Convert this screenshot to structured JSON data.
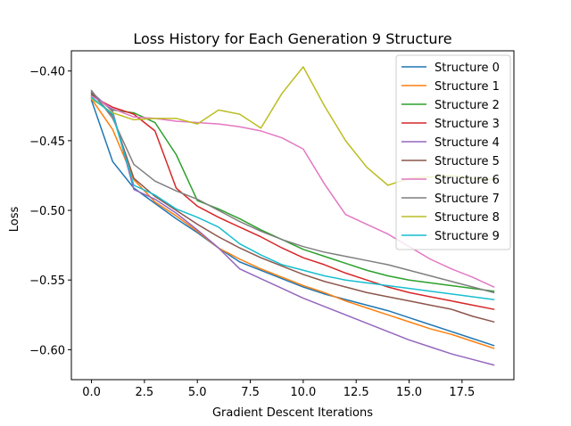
{
  "chart_data": {
    "type": "line",
    "title": "Loss History for Each Generation 9 Structure",
    "xlabel": "Gradient Descent Iterations",
    "ylabel": "Loss",
    "xlim": [
      -0.95,
      19.95
    ],
    "ylim": [
      -0.6215,
      -0.3855
    ],
    "xticks": [
      0.0,
      2.5,
      5.0,
      7.5,
      10.0,
      12.5,
      15.0,
      17.5
    ],
    "xtick_labels": [
      "0.0",
      "2.5",
      "5.0",
      "7.5",
      "10.0",
      "12.5",
      "15.0",
      "17.5"
    ],
    "yticks": [
      -0.4,
      -0.45,
      -0.5,
      -0.55,
      -0.6
    ],
    "ytick_labels": [
      "−0.40",
      "−0.45",
      "−0.50",
      "−0.55",
      "−0.60"
    ],
    "grid": false,
    "legend_position": "top-right",
    "x": [
      0,
      1,
      2,
      3,
      4,
      5,
      6,
      7,
      8,
      9,
      10,
      11,
      12,
      13,
      14,
      15,
      16,
      17,
      18,
      19
    ],
    "series": [
      {
        "name": "Structure 0",
        "color": "#1f77b4",
        "values": [
          -0.421,
          -0.465,
          -0.484,
          -0.495,
          -0.506,
          -0.516,
          -0.527,
          -0.537,
          -0.543,
          -0.549,
          -0.555,
          -0.56,
          -0.564,
          -0.568,
          -0.572,
          -0.577,
          -0.582,
          -0.587,
          -0.592,
          -0.597
        ]
      },
      {
        "name": "Structure 1",
        "color": "#ff7f0e",
        "values": [
          -0.42,
          -0.442,
          -0.478,
          -0.494,
          -0.504,
          -0.515,
          -0.527,
          -0.535,
          -0.542,
          -0.548,
          -0.554,
          -0.559,
          -0.565,
          -0.57,
          -0.575,
          -0.58,
          -0.585,
          -0.589,
          -0.594,
          -0.599
        ]
      },
      {
        "name": "Structure 2",
        "color": "#2ca02c",
        "values": [
          -0.417,
          -0.428,
          -0.43,
          -0.437,
          -0.46,
          -0.493,
          -0.499,
          -0.506,
          -0.514,
          -0.521,
          -0.528,
          -0.533,
          -0.538,
          -0.543,
          -0.547,
          -0.55,
          -0.552,
          -0.554,
          -0.556,
          -0.558
        ]
      },
      {
        "name": "Structure 3",
        "color": "#d62728",
        "values": [
          -0.418,
          -0.426,
          -0.431,
          -0.443,
          -0.484,
          -0.497,
          -0.505,
          -0.512,
          -0.519,
          -0.527,
          -0.534,
          -0.539,
          -0.545,
          -0.55,
          -0.555,
          -0.559,
          -0.562,
          -0.565,
          -0.568,
          -0.571
        ]
      },
      {
        "name": "Structure 4",
        "color": "#9467bd",
        "values": [
          -0.415,
          -0.429,
          -0.485,
          -0.492,
          -0.502,
          -0.514,
          -0.527,
          -0.542,
          -0.549,
          -0.556,
          -0.563,
          -0.569,
          -0.575,
          -0.581,
          -0.587,
          -0.593,
          -0.598,
          -0.603,
          -0.607,
          -0.611
        ]
      },
      {
        "name": "Structure 5",
        "color": "#8c564b",
        "values": [
          -0.416,
          -0.432,
          -0.477,
          -0.49,
          -0.5,
          -0.51,
          -0.519,
          -0.527,
          -0.534,
          -0.54,
          -0.546,
          -0.551,
          -0.555,
          -0.559,
          -0.562,
          -0.565,
          -0.568,
          -0.571,
          -0.576,
          -0.58
        ]
      },
      {
        "name": "Structure 6",
        "color": "#e377c2",
        "values": [
          -0.418,
          -0.427,
          -0.433,
          -0.434,
          -0.436,
          -0.437,
          -0.438,
          -0.44,
          -0.443,
          -0.448,
          -0.456,
          -0.481,
          -0.503,
          -0.51,
          -0.517,
          -0.526,
          -0.535,
          -0.542,
          -0.548,
          -0.555
        ]
      },
      {
        "name": "Structure 7",
        "color": "#7f7f7f",
        "values": [
          -0.414,
          -0.434,
          -0.467,
          -0.479,
          -0.486,
          -0.492,
          -0.5,
          -0.508,
          -0.515,
          -0.521,
          -0.526,
          -0.53,
          -0.533,
          -0.536,
          -0.539,
          -0.543,
          -0.547,
          -0.551,
          -0.555,
          -0.559
        ]
      },
      {
        "name": "Structure 8",
        "color": "#bcbd22",
        "values": [
          -0.42,
          -0.43,
          -0.435,
          -0.434,
          -0.434,
          -0.438,
          -0.428,
          -0.431,
          -0.441,
          -0.416,
          -0.397,
          -0.425,
          -0.45,
          -0.469,
          -0.482,
          -0.477,
          -0.476,
          -0.475,
          -0.477,
          -0.478
        ]
      },
      {
        "name": "Structure 9",
        "color": "#17becf",
        "values": [
          -0.419,
          -0.431,
          -0.482,
          -0.489,
          -0.499,
          -0.505,
          -0.512,
          -0.524,
          -0.532,
          -0.539,
          -0.543,
          -0.547,
          -0.55,
          -0.552,
          -0.554,
          -0.556,
          -0.558,
          -0.56,
          -0.562,
          -0.564
        ]
      }
    ]
  }
}
